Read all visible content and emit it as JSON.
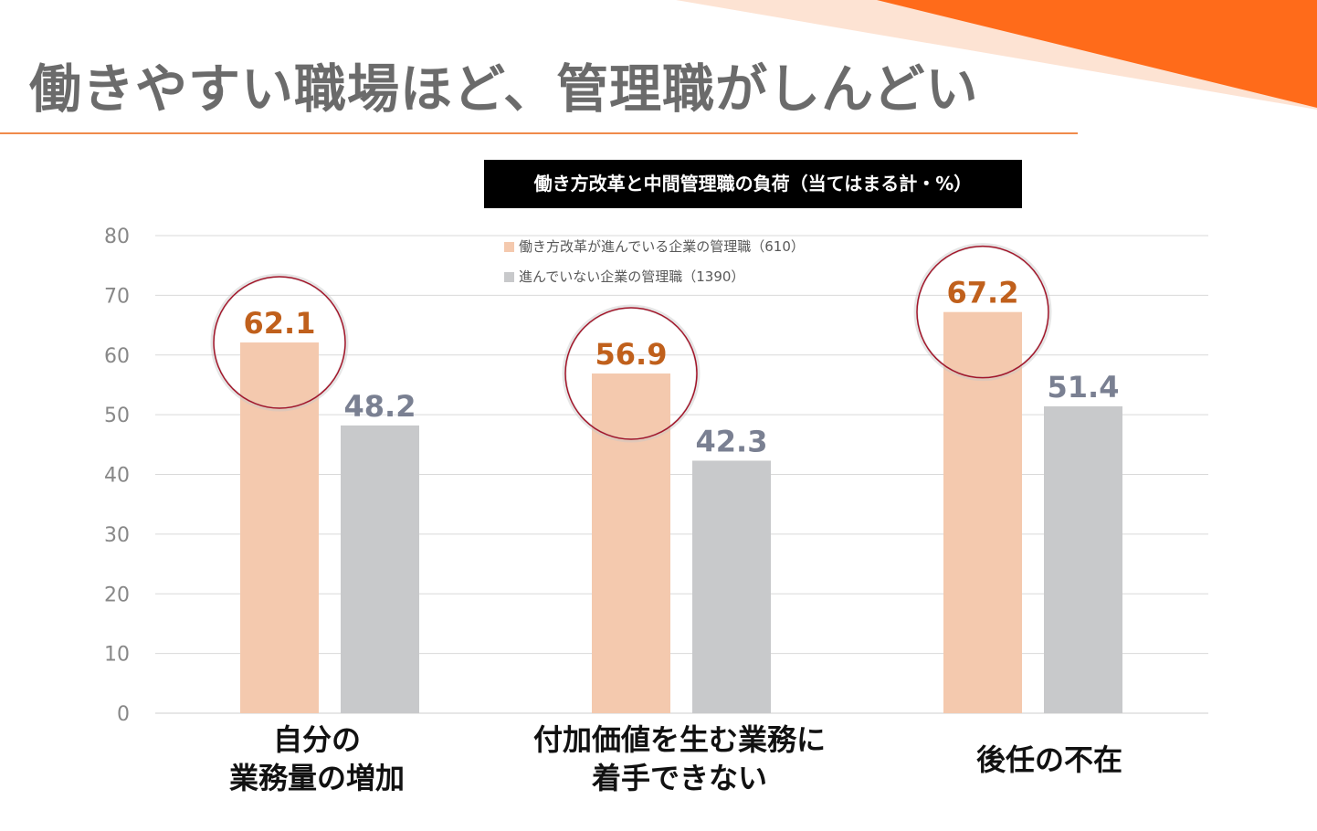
{
  "slide": {
    "title": "働きやすい職場ほど、管理職がしんどい"
  },
  "colors": {
    "accent_orange": "#ff6b1a",
    "accent_peach": "#fbd9c6",
    "rule": "#f08a4b",
    "series1_bar": "#f4c9ae",
    "series1_label": "#c0601c",
    "series2_bar": "#c8c9cb",
    "series2_label": "#7a8092",
    "circle": "#a3162a"
  },
  "chart_data": {
    "type": "bar",
    "title": "働き方改革と中間管理職の負荷（当てはまる計・%）",
    "categories": [
      "自分の\n業務量の増加",
      "付加価値を生む業務に\n着手できない",
      "後任の不在"
    ],
    "series": [
      {
        "name": "働き方改革が進んでいる企業の管理職（610）",
        "values": [
          62.1,
          56.9,
          67.2
        ],
        "color": "#f4c9ae",
        "highlighted": true
      },
      {
        "name": "進んでいない企業の管理職（1390）",
        "values": [
          48.2,
          42.3,
          51.4
        ],
        "color": "#c8c9cb"
      }
    ],
    "ylim": [
      0,
      80
    ],
    "yticks": [
      0,
      10,
      20,
      30,
      40,
      50,
      60,
      70,
      80
    ],
    "grid": true,
    "legend": "top-center",
    "xlabel": "",
    "ylabel": ""
  }
}
